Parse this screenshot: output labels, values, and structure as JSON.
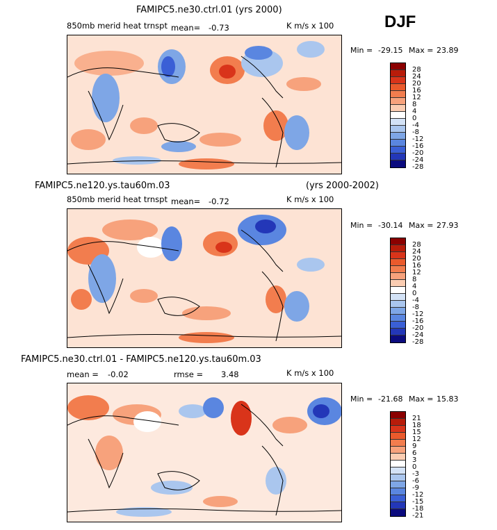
{
  "season": "DJF",
  "panels": [
    {
      "title": "FAMIPC5.ne30.ctrl.01 (yrs 2000)",
      "variable": "850mb merid heat trnspt",
      "mean_label": "mean=",
      "mean_value": "-0.73",
      "rmse_label": "",
      "rmse_value": "",
      "units": "K m/s x 100",
      "min_label": "Min =",
      "min_value": "-29.15",
      "max_label": "Max =",
      "max_value": "23.89",
      "levels": [
        "28",
        "24",
        "20",
        "16",
        "12",
        "8",
        "4",
        "0",
        "-4",
        "-8",
        "-12",
        "-16",
        "-20",
        "-24",
        "-28"
      ]
    },
    {
      "title": "FAMIPC5.ne120.ys.tau60m.03",
      "title_right": "(yrs 2000-2002)",
      "variable": "850mb merid heat trnspt",
      "mean_label": "mean=",
      "mean_value": "-0.72",
      "rmse_label": "",
      "rmse_value": "",
      "units": "K m/s x 100",
      "min_label": "Min =",
      "min_value": "-30.14",
      "max_label": "Max =",
      "max_value": "27.93",
      "levels": [
        "28",
        "24",
        "20",
        "16",
        "12",
        "8",
        "4",
        "0",
        "-4",
        "-8",
        "-12",
        "-16",
        "-20",
        "-24",
        "-28"
      ]
    },
    {
      "title": "FAMIPC5.ne30.ctrl.01 - FAMIPC5.ne120.ys.tau60m.03",
      "variable": "",
      "mean_label": "mean =",
      "mean_value": "-0.02",
      "rmse_label": "rmse =",
      "rmse_value": "3.48",
      "units": "K m/s x 100",
      "min_label": "Min =",
      "min_value": "-21.68",
      "max_label": "Max =",
      "max_value": "15.83",
      "levels": [
        "21",
        "18",
        "15",
        "12",
        "9",
        "6",
        "3",
        "0",
        "-3",
        "-6",
        "-9",
        "-12",
        "-15",
        "-18",
        "-21"
      ]
    }
  ],
  "colorbar_colors": [
    "#8b0000",
    "#b81c0a",
    "#d9341a",
    "#ea5a2c",
    "#f27d4e",
    "#f7a27c",
    "#fbcdb2",
    "#ffffff",
    "#d3e2f6",
    "#aac6ee",
    "#7ea6e6",
    "#5a86e0",
    "#3a5fd6",
    "#2337b8",
    "#0b0b7e"
  ]
}
